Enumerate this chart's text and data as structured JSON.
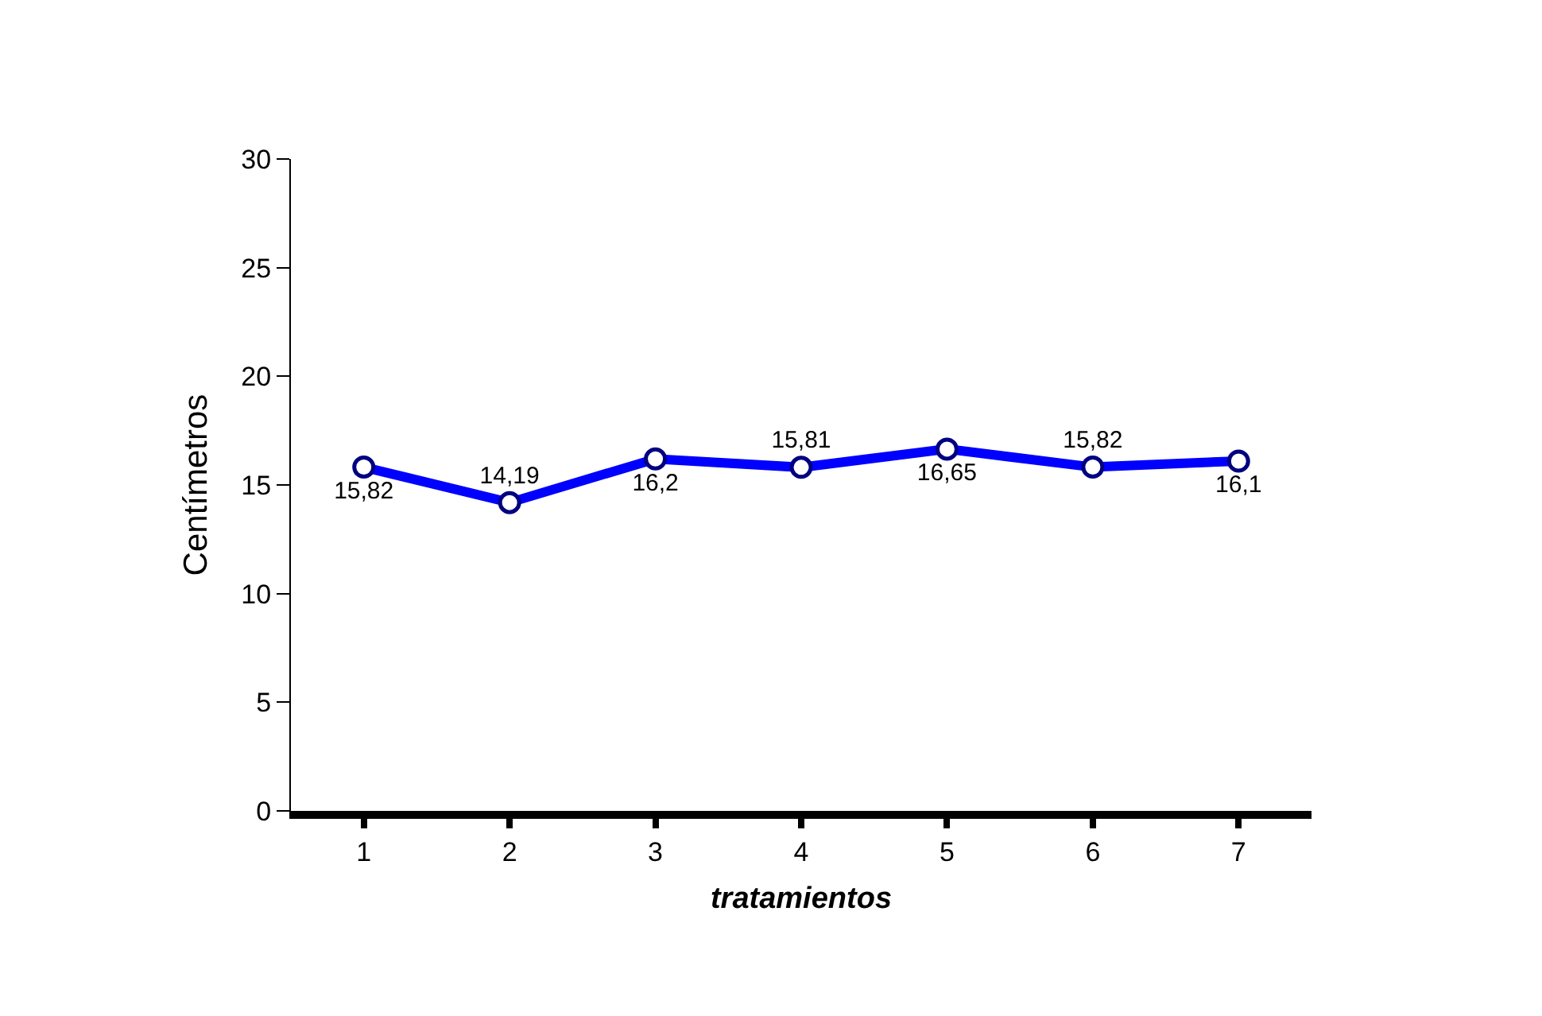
{
  "chart_data": {
    "type": "line",
    "xlabel": "tratamientos",
    "ylabel": "Centímetros",
    "categories": [
      "1",
      "2",
      "3",
      "4",
      "5",
      "6",
      "7"
    ],
    "series": [
      {
        "color": "#0000ff",
        "values": [
          15.82,
          14.19,
          16.2,
          15.81,
          16.65,
          15.82,
          16.1
        ],
        "value_labels": [
          "15,82",
          "14,19",
          "16,2",
          "15,81",
          "16,65",
          "15,82",
          "16,1"
        ]
      }
    ],
    "ylim": [
      0,
      30
    ],
    "yticks": [
      0,
      5,
      10,
      15,
      20,
      25,
      30
    ],
    "marker": "circle",
    "line_style": "solid"
  }
}
